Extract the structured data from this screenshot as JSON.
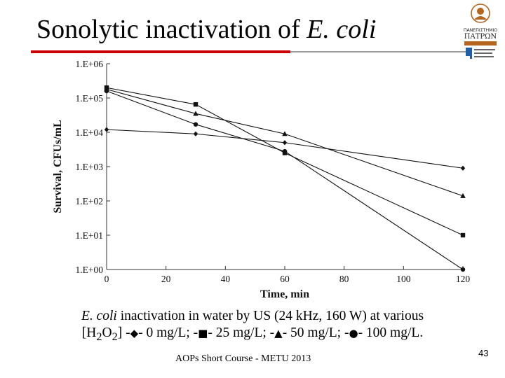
{
  "slide": {
    "title_prefix": "Sonolytic inactivation of ",
    "title_italic": "E. coli",
    "caption_line1_italic": "E. coli",
    "caption_line1_rest": " inactivation in water by US (24 kHz, 160 W) at various",
    "caption_line2": {
      "open": "[H",
      "sub1": "2",
      "mid": "O",
      "sub2": "2",
      "close": "]",
      "l0_pre": " -",
      "l0_sym": "◆",
      "l0_text": "- 0 mg/L; -",
      "l1_sym": "■",
      "l1_text": "- 25 mg/L; -",
      "l2_sym": "▲",
      "l2_text": "- 50 mg/L; -",
      "l3_sym": "●",
      "l3_text": "- 100 mg/L."
    },
    "footer": "AOPs Short Course - METU 2013",
    "page_number": "43"
  },
  "logo": {
    "line1": "ΠΑΝΕΠΙΣΤΗΜΙΟ",
    "line2": "ΠΑΤΡΩΝ"
  },
  "colors": {
    "title_rule": "#cc0000",
    "rule_gray": "#9a9a9a",
    "series": "#111111",
    "logo_accent": "#b5651d",
    "logo_blue": "#1f5fa8"
  },
  "chart_data": {
    "type": "line",
    "xlabel": "Time, min",
    "ylabel": "Survival, CFUs/mL",
    "xlim": [
      0,
      120
    ],
    "x_ticks": [
      0,
      20,
      40,
      60,
      80,
      100,
      120
    ],
    "y_scale": "log",
    "ylim": [
      1,
      1000000
    ],
    "y_ticks": [
      {
        "value": 1,
        "label": "1.E+00"
      },
      {
        "value": 10,
        "label": "1.E+01"
      },
      {
        "value": 100,
        "label": "1.E+02"
      },
      {
        "value": 1000,
        "label": "1.E+03"
      },
      {
        "value": 10000,
        "label": "1.E+04"
      },
      {
        "value": 100000,
        "label": "1.E+05"
      },
      {
        "value": 1000000,
        "label": "1.E+06"
      }
    ],
    "grid": false,
    "series": [
      {
        "marker": "diamond",
        "x": [
          0,
          30,
          60,
          120
        ],
        "y": [
          12000,
          9000,
          5000,
          900
        ]
      },
      {
        "marker": "square",
        "x": [
          0,
          30,
          60,
          120
        ],
        "y": [
          200000,
          65000,
          2500,
          10
        ]
      },
      {
        "marker": "triangle",
        "x": [
          0,
          30,
          60,
          120
        ],
        "y": [
          180000,
          35000,
          9000,
          140
        ]
      },
      {
        "marker": "circle",
        "x": [
          0,
          30,
          60,
          120
        ],
        "y": [
          160000,
          17000,
          2800,
          1
        ]
      }
    ]
  }
}
